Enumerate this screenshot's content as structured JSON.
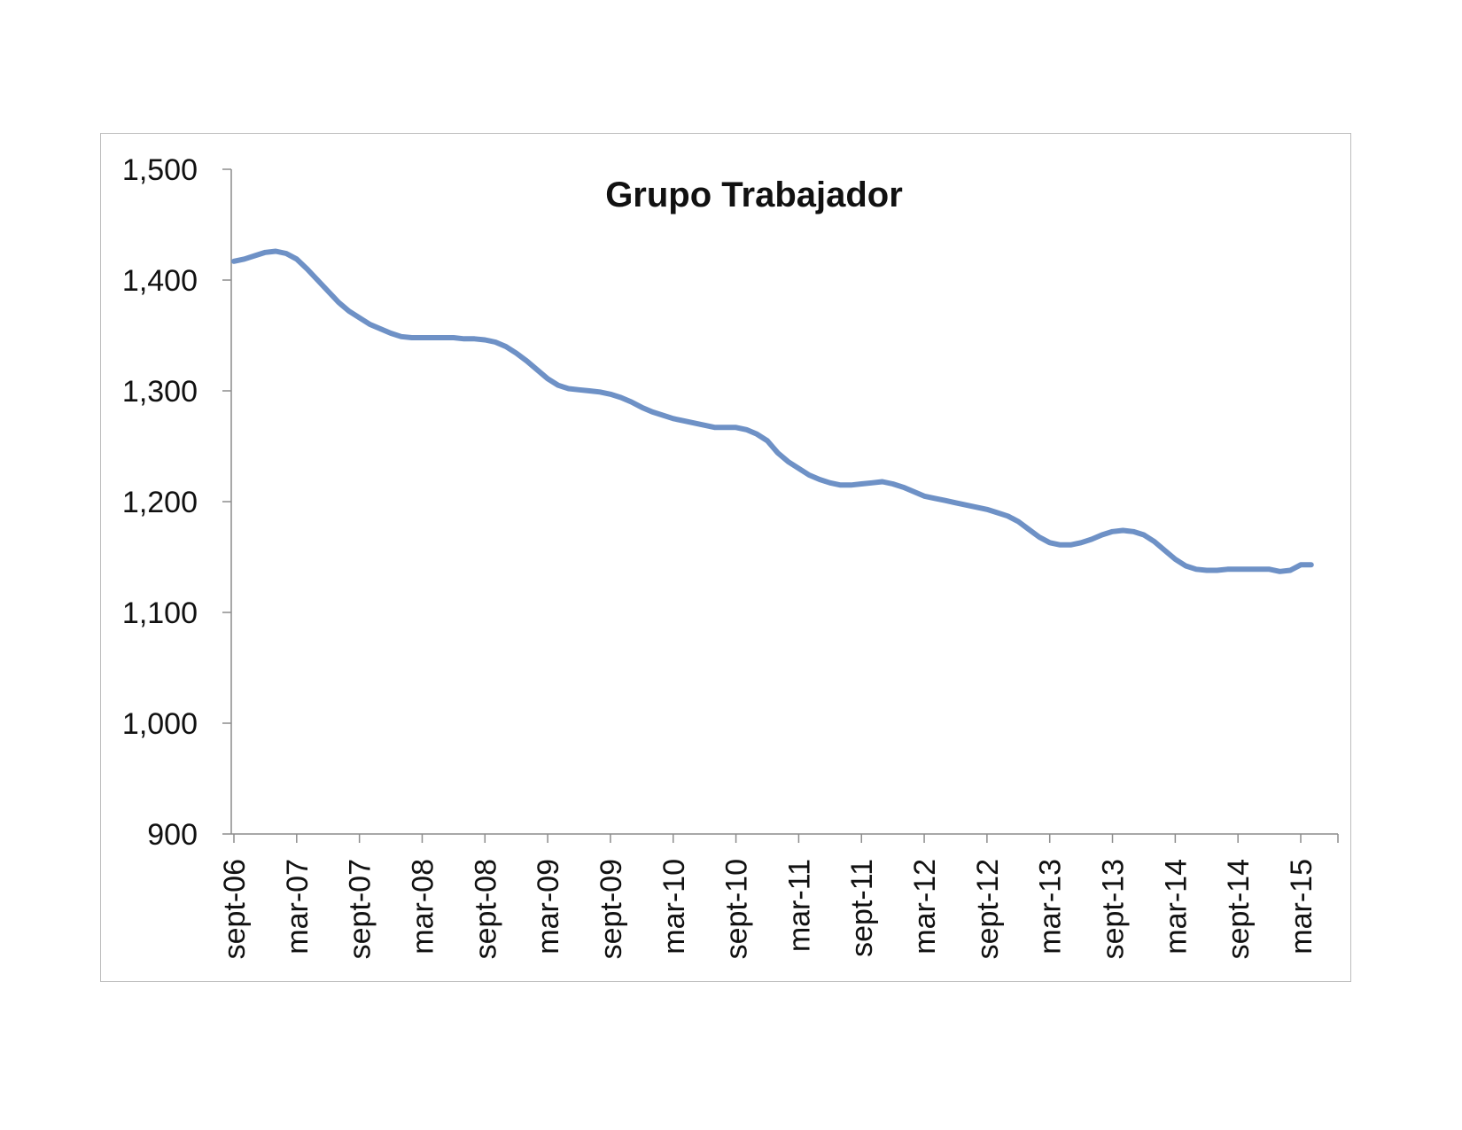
{
  "chart_data": {
    "type": "line",
    "title": "Grupo Trabajador",
    "xlabel": "",
    "ylabel": "",
    "ylim": [
      900,
      1500
    ],
    "y_ticks": [
      "900",
      "1,000",
      "1,100",
      "1,200",
      "1,300",
      "1,400",
      "1,500"
    ],
    "y_tick_values": [
      900,
      1000,
      1100,
      1200,
      1300,
      1400,
      1500
    ],
    "x_tick_labels": [
      "sept-06",
      "mar-07",
      "sept-07",
      "mar-08",
      "sept-08",
      "mar-09",
      "sept-09",
      "mar-10",
      "sept-10",
      "mar-11",
      "sept-11",
      "mar-12",
      "sept-12",
      "mar-13",
      "sept-13",
      "mar-14",
      "sept-14",
      "mar-15"
    ],
    "grid": false,
    "legend": "none",
    "series_color": "#6e91c6",
    "series": [
      {
        "values": [
          1417,
          1419,
          1422,
          1425,
          1426,
          1424,
          1419,
          1410,
          1400,
          1390,
          1380,
          1372,
          1366,
          1360,
          1356,
          1352,
          1349,
          1348,
          1348,
          1348,
          1348,
          1348,
          1347,
          1347,
          1346,
          1344,
          1340,
          1334,
          1327,
          1319,
          1311,
          1305,
          1302,
          1301,
          1300,
          1299,
          1297,
          1294,
          1290,
          1285,
          1281,
          1278,
          1275,
          1273,
          1271,
          1269,
          1267,
          1267,
          1267,
          1265,
          1261,
          1255,
          1244,
          1236,
          1230,
          1224,
          1220,
          1217,
          1215,
          1215,
          1216,
          1217,
          1218,
          1216,
          1213,
          1209,
          1205,
          1203,
          1201,
          1199,
          1197,
          1195,
          1193,
          1190,
          1187,
          1182,
          1175,
          1168,
          1163,
          1161,
          1161,
          1163,
          1166,
          1170,
          1173,
          1174,
          1173,
          1170,
          1164,
          1156,
          1148,
          1142,
          1139,
          1138,
          1138,
          1139,
          1139,
          1139,
          1139,
          1139,
          1137,
          1138,
          1143,
          1143
        ]
      }
    ]
  }
}
